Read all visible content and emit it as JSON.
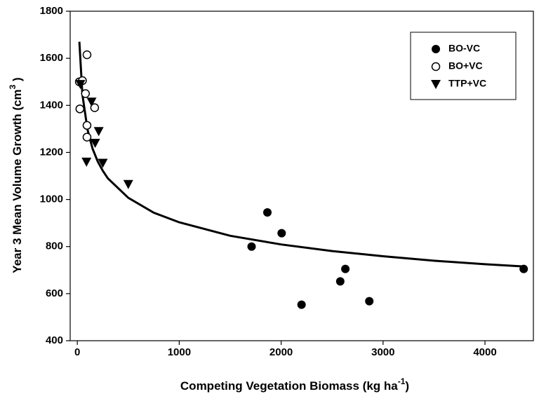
{
  "chart_data": {
    "type": "scatter",
    "x_label": {
      "text": "Competing Vegetation Biomass (kg ha",
      "sup": "-1",
      "end": ")"
    },
    "y_label": {
      "text": "Year 3 Mean Volume Growth (cm",
      "sup": "3",
      "end": " )"
    },
    "xlim": [
      -70,
      4475
    ],
    "xticks": [
      0,
      1000,
      2000,
      3000,
      4000
    ],
    "ylim": [
      400,
      1800
    ],
    "yticks": [
      400,
      600,
      800,
      1000,
      1200,
      1400,
      1600,
      1800
    ],
    "legend": "top-right",
    "series": [
      {
        "name": "BO-VC",
        "marker": "filled-circle",
        "color": "#000000",
        "x": [
          1710,
          1865,
          2005,
          2200,
          2580,
          2630,
          2865,
          4380
        ],
        "values": [
          800,
          945,
          857,
          553,
          652,
          705,
          568,
          705
        ]
      },
      {
        "name": "BO+VC",
        "marker": "open-circle",
        "color": "#000000",
        "x": [
          20,
          95,
          50,
          25,
          80,
          95,
          95,
          170
        ],
        "values": [
          1500,
          1615,
          1505,
          1385,
          1450,
          1315,
          1265,
          1390
        ]
      },
      {
        "name": "TTP+VC",
        "marker": "triangle-down",
        "color": "#000000",
        "x": [
          30,
          140,
          210,
          175,
          90,
          250,
          500
        ],
        "values": [
          1490,
          1415,
          1290,
          1240,
          1160,
          1155,
          1065
        ]
      }
    ],
    "fit_curve": {
      "color": "#000000",
      "x": [
        20,
        50,
        100,
        150,
        200,
        250,
        300,
        500,
        750,
        1000,
        1500,
        2000,
        2500,
        3000,
        3500,
        4000,
        4400
      ],
      "values": [
        1670,
        1446,
        1297,
        1216,
        1162,
        1122,
        1090,
        1007,
        944,
        903,
        846,
        809,
        781,
        759,
        740,
        725,
        715
      ]
    }
  }
}
